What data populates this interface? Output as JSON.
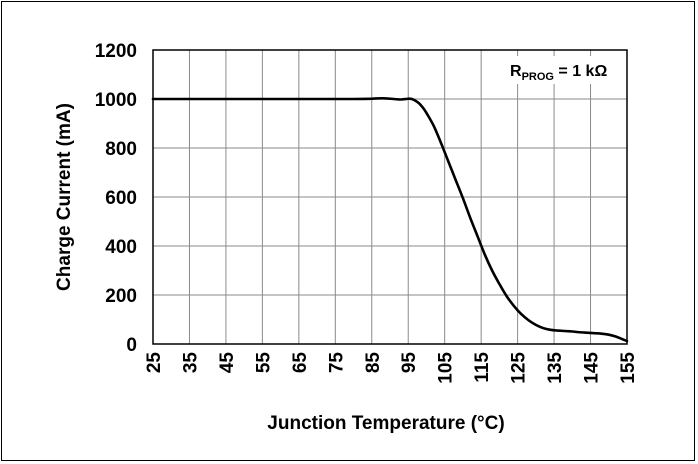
{
  "chart_data": {
    "type": "line",
    "xlabel": "Junction Temperature (°C)",
    "ylabel": "Charge Current (mA)",
    "xlim": [
      25,
      155
    ],
    "ylim": [
      0,
      1200
    ],
    "x_ticks": [
      25,
      35,
      45,
      55,
      65,
      75,
      85,
      95,
      105,
      115,
      125,
      135,
      145,
      155
    ],
    "y_ticks": [
      0,
      200,
      400,
      600,
      800,
      1000,
      1200
    ],
    "grid": true,
    "annotation": {
      "main": "R",
      "sub": "PROG",
      "rest": " = 1 kΩ"
    },
    "series": [
      {
        "color": "#000000",
        "x": [
          25,
          40,
          60,
          80,
          85,
          88,
          91,
          93,
          95,
          96,
          97,
          98,
          99,
          100,
          102,
          104,
          106,
          108,
          110,
          112,
          114,
          116,
          118,
          120,
          122,
          124,
          126,
          128,
          130,
          132,
          134,
          136,
          138,
          140,
          142,
          144,
          146,
          148,
          150,
          152,
          154,
          155
        ],
        "y": [
          1000,
          1000,
          1000,
          1000,
          1001,
          1003,
          1000,
          998,
          1001,
          1000,
          993,
          982,
          965,
          943,
          890,
          820,
          745,
          670,
          595,
          515,
          440,
          365,
          300,
          245,
          195,
          155,
          122,
          97,
          78,
          65,
          58,
          55,
          53,
          51,
          48,
          46,
          44,
          42,
          38,
          30,
          18,
          12
        ]
      }
    ]
  }
}
